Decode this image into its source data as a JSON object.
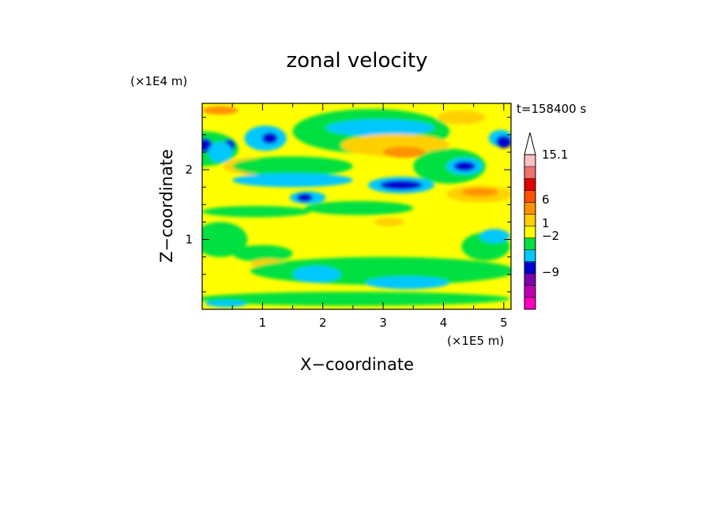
{
  "chart_data": {
    "type": "heatmap",
    "title": "zonal velocity",
    "xlabel": "X−coordinate",
    "ylabel": "Z−coordinate",
    "x_unit": "(×1E5 m)",
    "y_unit": "(×1E4 m)",
    "time_label": "t=158400 s",
    "xlim": [
      0,
      5.12
    ],
    "ylim": [
      0,
      2.95
    ],
    "x_ticks": [
      1,
      2,
      3,
      4,
      5
    ],
    "y_ticks": [
      1,
      2
    ],
    "colorbar": {
      "labels": [
        {
          "text": "15.1",
          "value": 15.1
        },
        {
          "text": "6",
          "value": 6
        },
        {
          "text": "1",
          "value": 1
        },
        {
          "text": "−2",
          "value": -2
        },
        {
          "text": "−9",
          "value": -9
        }
      ],
      "levels": [
        {
          "color": "#ff00c0"
        },
        {
          "color": "#c000b0"
        },
        {
          "color": "#8000a8"
        },
        {
          "color": "#0000d0"
        },
        {
          "color": "#00c8ff"
        },
        {
          "color": "#00e040"
        },
        {
          "color": "#ffff00"
        },
        {
          "color": "#ffd000"
        },
        {
          "color": "#ff9000"
        },
        {
          "color": "#ff5000"
        },
        {
          "color": "#e00000"
        },
        {
          "color": "#f07070"
        },
        {
          "color": "#f8c0c0"
        }
      ],
      "extend_max": true
    },
    "field": {
      "base_color": "#ffff00",
      "blobs": [
        {
          "x": 0.0,
          "z": 2.3,
          "rx": 0.6,
          "rz": 0.25,
          "color": "#00e040"
        },
        {
          "x": 0.05,
          "z": 2.35,
          "rx": 0.12,
          "rz": 0.1,
          "color": "#0000d0"
        },
        {
          "x": 0.45,
          "z": 2.35,
          "rx": 0.1,
          "rz": 0.08,
          "color": "#0000d0"
        },
        {
          "x": 0.3,
          "z": 2.25,
          "rx": 0.2,
          "rz": 0.15,
          "color": "#00c8ff"
        },
        {
          "x": 1.05,
          "z": 2.45,
          "rx": 0.35,
          "rz": 0.18,
          "color": "#00c8ff"
        },
        {
          "x": 1.12,
          "z": 2.45,
          "rx": 0.13,
          "rz": 0.08,
          "color": "#0000d0"
        },
        {
          "x": 0.85,
          "z": 2.05,
          "rx": 0.5,
          "rz": 0.12,
          "color": "#ffd000"
        },
        {
          "x": 0.8,
          "z": 2.0,
          "rx": 0.15,
          "rz": 0.07,
          "color": "#ff9000"
        },
        {
          "x": 1.5,
          "z": 2.05,
          "rx": 1.0,
          "rz": 0.14,
          "color": "#00e040"
        },
        {
          "x": 1.5,
          "z": 1.85,
          "rx": 1.0,
          "rz": 0.1,
          "color": "#00c8ff"
        },
        {
          "x": 1.75,
          "z": 1.6,
          "rx": 0.3,
          "rz": 0.09,
          "color": "#00c8ff"
        },
        {
          "x": 1.7,
          "z": 1.6,
          "rx": 0.13,
          "rz": 0.06,
          "color": "#0000d0"
        },
        {
          "x": 2.8,
          "z": 2.55,
          "rx": 1.3,
          "rz": 0.32,
          "color": "#00e040"
        },
        {
          "x": 2.95,
          "z": 2.6,
          "rx": 0.9,
          "rz": 0.12,
          "color": "#00c8ff"
        },
        {
          "x": 3.2,
          "z": 2.35,
          "rx": 0.9,
          "rz": 0.16,
          "color": "#ffd000"
        },
        {
          "x": 3.35,
          "z": 2.25,
          "rx": 0.35,
          "rz": 0.08,
          "color": "#ff9000"
        },
        {
          "x": 3.3,
          "z": 1.78,
          "rx": 0.55,
          "rz": 0.12,
          "color": "#00c8ff"
        },
        {
          "x": 3.3,
          "z": 1.78,
          "rx": 0.35,
          "rz": 0.07,
          "color": "#0000d0"
        },
        {
          "x": 4.1,
          "z": 2.05,
          "rx": 0.6,
          "rz": 0.25,
          "color": "#00e040"
        },
        {
          "x": 4.35,
          "z": 2.05,
          "rx": 0.3,
          "rz": 0.12,
          "color": "#00c8ff"
        },
        {
          "x": 4.35,
          "z": 2.05,
          "rx": 0.18,
          "rz": 0.07,
          "color": "#0000d0"
        },
        {
          "x": 4.95,
          "z": 2.45,
          "rx": 0.2,
          "rz": 0.12,
          "color": "#00c8ff"
        },
        {
          "x": 5.0,
          "z": 2.4,
          "rx": 0.13,
          "rz": 0.09,
          "color": "#0000d0"
        },
        {
          "x": 4.3,
          "z": 2.75,
          "rx": 0.4,
          "rz": 0.1,
          "color": "#ffd000"
        },
        {
          "x": 4.6,
          "z": 1.65,
          "rx": 0.55,
          "rz": 0.12,
          "color": "#ffd000"
        },
        {
          "x": 4.6,
          "z": 1.68,
          "rx": 0.3,
          "rz": 0.06,
          "color": "#ff9000"
        },
        {
          "x": 2.6,
          "z": 1.45,
          "rx": 0.9,
          "rz": 0.1,
          "color": "#00e040"
        },
        {
          "x": 0.9,
          "z": 1.4,
          "rx": 0.9,
          "rz": 0.08,
          "color": "#00e040"
        },
        {
          "x": 0.3,
          "z": 1.0,
          "rx": 0.45,
          "rz": 0.25,
          "color": "#00e040"
        },
        {
          "x": 1.0,
          "z": 0.8,
          "rx": 0.5,
          "rz": 0.12,
          "color": "#00e040"
        },
        {
          "x": 1.1,
          "z": 0.65,
          "rx": 0.3,
          "rz": 0.07,
          "color": "#ffd000"
        },
        {
          "x": 3.0,
          "z": 0.55,
          "rx": 2.2,
          "rz": 0.2,
          "color": "#00e040"
        },
        {
          "x": 1.9,
          "z": 0.5,
          "rx": 0.4,
          "rz": 0.12,
          "color": "#00c8ff"
        },
        {
          "x": 3.4,
          "z": 0.38,
          "rx": 0.7,
          "rz": 0.09,
          "color": "#00c8ff"
        },
        {
          "x": 4.7,
          "z": 0.9,
          "rx": 0.4,
          "rz": 0.2,
          "color": "#00e040"
        },
        {
          "x": 4.85,
          "z": 1.05,
          "rx": 0.25,
          "rz": 0.1,
          "color": "#00c8ff"
        },
        {
          "x": 2.5,
          "z": 0.15,
          "rx": 2.6,
          "rz": 0.1,
          "color": "#00e040"
        },
        {
          "x": 0.4,
          "z": 0.08,
          "rx": 0.35,
          "rz": 0.05,
          "color": "#00c8ff"
        },
        {
          "x": 0.3,
          "z": 2.85,
          "rx": 0.3,
          "rz": 0.06,
          "color": "#ff9000"
        },
        {
          "x": 3.1,
          "z": 1.25,
          "rx": 0.25,
          "rz": 0.06,
          "color": "#ffd000"
        }
      ]
    }
  }
}
